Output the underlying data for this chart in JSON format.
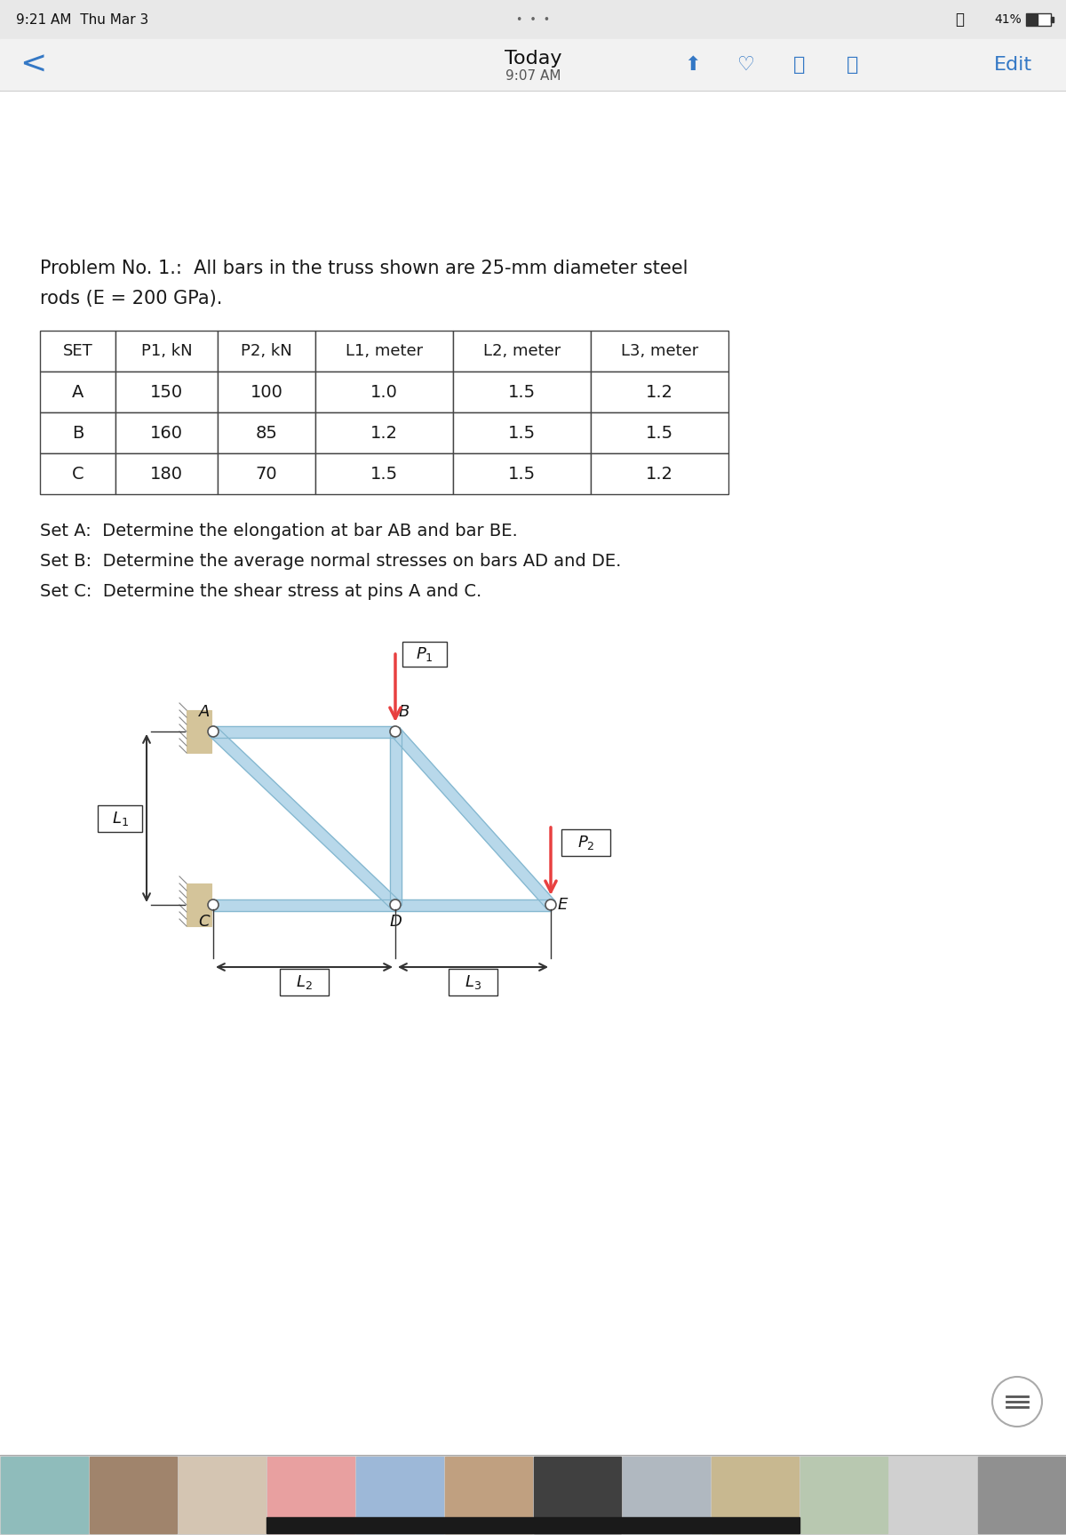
{
  "status_bar": "9:21 AM  Thu Mar 3",
  "battery": "41%",
  "toolbar_title": "Today",
  "toolbar_subtitle": "9:07 AM",
  "problem_line1": "Problem No. 1.:  All bars in the truss shown are 25-mm diameter steel",
  "problem_line2": "rods (E = 200 GPa).",
  "table_headers": [
    "SET",
    "P1, kN",
    "P2, kN",
    "L1, meter",
    "L2, meter",
    "L3, meter"
  ],
  "table_rows": [
    [
      "A",
      "150",
      "100",
      "1.0",
      "1.5",
      "1.2"
    ],
    [
      "B",
      "160",
      "85",
      "1.2",
      "1.5",
      "1.5"
    ],
    [
      "C",
      "180",
      "70",
      "1.5",
      "1.5",
      "1.2"
    ]
  ],
  "set_texts": [
    "Set A:  Determine the elongation at bar AB and bar BE.",
    "Set B:  Determine the average normal stresses on bars AD and DE.",
    "Set C:  Determine the shear stress at pins A and C."
  ],
  "bg_color": "#e8e8e8",
  "page_color": "#ffffff",
  "text_color": "#1a1a1a",
  "toolbar_bg": "#f2f2f2",
  "blue_color": "#3478c5",
  "truss_bar_color": "#b8d8ea",
  "truss_bar_edge": "#85b8d0",
  "pin_edge": "#555555",
  "wall_fill": "#d4c49a",
  "wall_edge": "#888888",
  "arrow_color": "#e84040",
  "dim_color": "#333333",
  "thumb_bg": "#c8c8c8"
}
